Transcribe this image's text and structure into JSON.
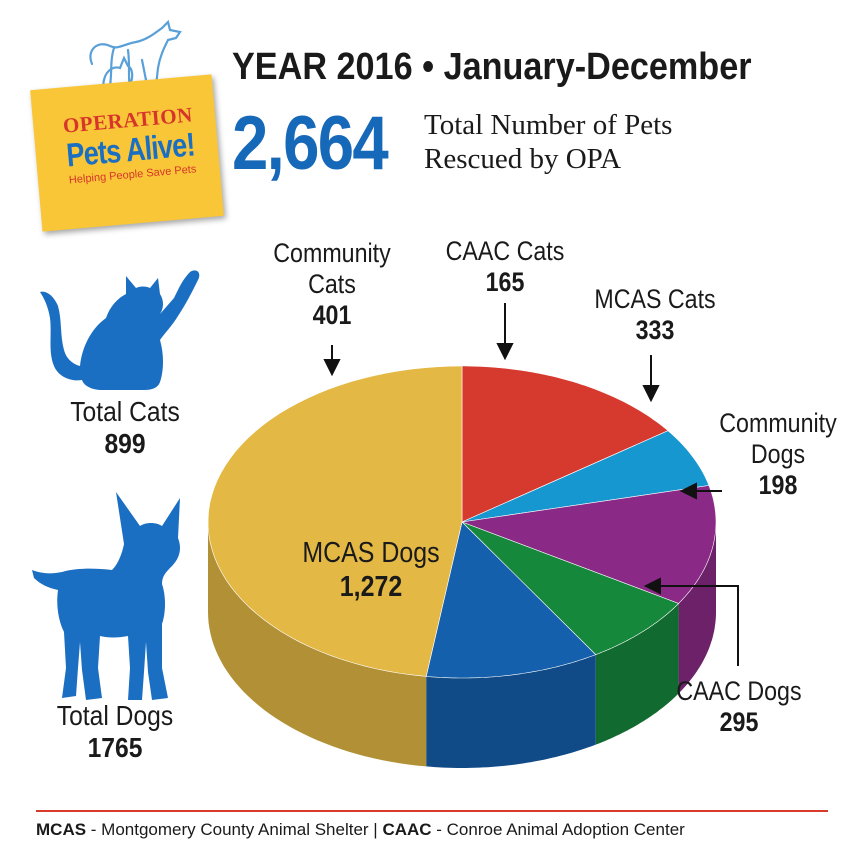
{
  "logo": {
    "line1": "OPERATION",
    "line2": "Pets Alive!",
    "line3": "Helping People Save Pets"
  },
  "header": {
    "title": "YEAR 2016 • January-December",
    "total": "2,664",
    "total_caption_line1": "Total Number of Pets",
    "total_caption_line2": "Rescued by OPA"
  },
  "totals": {
    "cats_label": "Total Cats",
    "cats_value": "899",
    "dogs_label": "Total Dogs",
    "dogs_value": "1765"
  },
  "labels": {
    "community_cats_l1": "Community",
    "community_cats_l2": "Cats",
    "community_cats_v": "401",
    "caac_cats_l1": "CAAC Cats",
    "caac_cats_v": "165",
    "mcas_cats_l1": "MCAS Cats",
    "mcas_cats_v": "333",
    "community_dogs_l1": "Community",
    "community_dogs_l2": "Dogs",
    "community_dogs_v": "198",
    "mcas_dogs_l1": "MCAS Dogs",
    "mcas_dogs_v": "1,272",
    "caac_dogs_l1": "CAAC Dogs",
    "caac_dogs_v": "295"
  },
  "footer": {
    "mcas_abbr": "MCAS",
    "mcas_text": " - Montgomery County Animal Shelter | ",
    "caac_abbr": "CAAC",
    "caac_text": " - Conroe Animal Adoption Center"
  },
  "colors": {
    "community_cats": "#d63a2f",
    "caac_cats": "#1797cf",
    "mcas_cats": "#8a2a86",
    "community_dogs": "#16883c",
    "caac_dogs": "#1560ad",
    "mcas_dogs": "#e3b845",
    "silhouette": "#1b6fc2",
    "accent_blue": "#1668b8"
  },
  "chart_data": {
    "type": "pie",
    "title": "",
    "categories": [
      "Community Cats",
      "CAAC Cats",
      "MCAS Cats",
      "Community Dogs",
      "CAAC Dogs",
      "MCAS Dogs"
    ],
    "values": [
      401,
      165,
      333,
      198,
      295,
      1272
    ],
    "total": 2664,
    "style": "3d"
  }
}
